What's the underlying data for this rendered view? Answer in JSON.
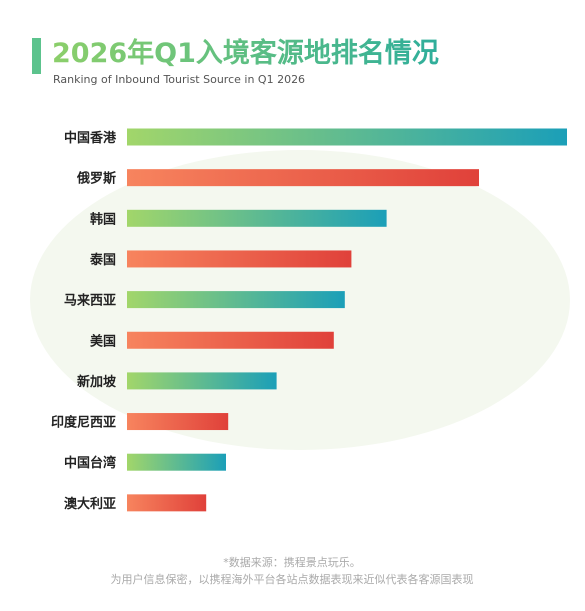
{
  "chart_data": {
    "type": "bar",
    "orientation": "horizontal",
    "title": "2026年Q1入境客源地排名情况",
    "subtitle": "Ranking of Inbound Tourist Source in Q1 2026",
    "categories": [
      "中国香港",
      "俄罗斯",
      "韩国",
      "泰国",
      "马来西亚",
      "美国",
      "新加坡",
      "印度尼西亚",
      "中国台湾",
      "澳大利亚"
    ],
    "values": [
      100,
      80,
      59,
      51,
      49.5,
      47,
      34,
      23,
      22.5,
      18
    ],
    "gradients": [
      [
        "#a2d66a",
        "#1b9fb8"
      ],
      [
        "#f7845e",
        "#e0413a"
      ]
    ],
    "notes": [
      "*数据来源：携程景点玩乐。",
      "为用户信息保密，以携程海外平台各站点数据表现来近似代表各客源国表现"
    ]
  }
}
